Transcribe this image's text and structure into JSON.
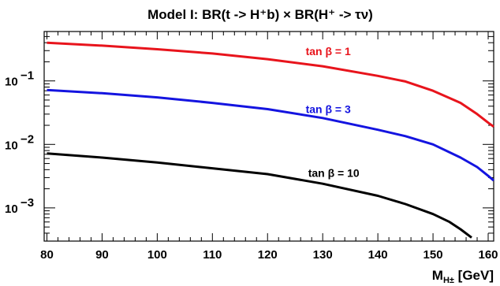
{
  "chart_data": {
    "type": "line",
    "title": "Model I: BR(t -> H⁺b) × BR(H⁺ -> τν)",
    "xlabel": "M_H± [GeV]",
    "ylabel": "",
    "xlim": [
      79.5,
      161
    ],
    "ylim": [
      0.0003,
      0.6
    ],
    "y_scale": "log",
    "x_ticks": [
      80,
      90,
      100,
      110,
      120,
      130,
      140,
      150,
      160
    ],
    "y_ticks": [
      {
        "value": 0.1,
        "label": "10",
        "exponent": "−1"
      },
      {
        "value": 0.01,
        "label": "10",
        "exponent": "−2"
      },
      {
        "value": 0.001,
        "label": "10",
        "exponent": "−3"
      }
    ],
    "grid": false,
    "series": [
      {
        "name": "tan β = 1",
        "color": "#e8141c",
        "x": [
          80,
          90,
          100,
          110,
          120,
          130,
          140,
          145,
          150,
          155,
          158,
          160,
          161
        ],
        "y": [
          0.4,
          0.36,
          0.315,
          0.27,
          0.22,
          0.17,
          0.12,
          0.098,
          0.07,
          0.045,
          0.03,
          0.022,
          0.019
        ]
      },
      {
        "name": "tan β = 3",
        "color": "#1414e0",
        "x": [
          80,
          90,
          100,
          110,
          120,
          130,
          140,
          145,
          150,
          155,
          158,
          160,
          161
        ],
        "y": [
          0.072,
          0.064,
          0.055,
          0.045,
          0.036,
          0.026,
          0.017,
          0.0135,
          0.01,
          0.0062,
          0.0044,
          0.0032,
          0.0027
        ]
      },
      {
        "name": "tan β = 10",
        "color": "#000000",
        "x": [
          80,
          90,
          100,
          110,
          120,
          130,
          140,
          145,
          150,
          153,
          155,
          157
        ],
        "y": [
          0.0072,
          0.0062,
          0.0052,
          0.0042,
          0.0034,
          0.0024,
          0.00155,
          0.00115,
          0.0008,
          0.0006,
          0.00046,
          0.00034
        ]
      }
    ]
  }
}
